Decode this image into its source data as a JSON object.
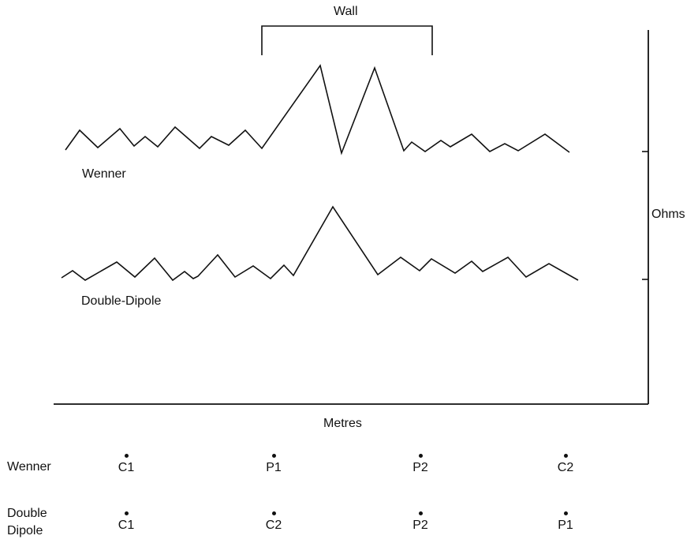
{
  "wall": {
    "label": "Wall"
  },
  "axes": {
    "x_label": "Metres",
    "y_label": "Ohms"
  },
  "series": [
    {
      "name": "Wenner"
    },
    {
      "name": "Double-Dipole"
    }
  ],
  "electrode_rows": [
    {
      "label": "Wenner",
      "electrodes": [
        "C1",
        "P1",
        "P2",
        "C2"
      ]
    },
    {
      "label": "Double\nDipole",
      "electrodes": [
        "C1",
        "C2",
        "P2",
        "P1"
      ]
    }
  ]
}
